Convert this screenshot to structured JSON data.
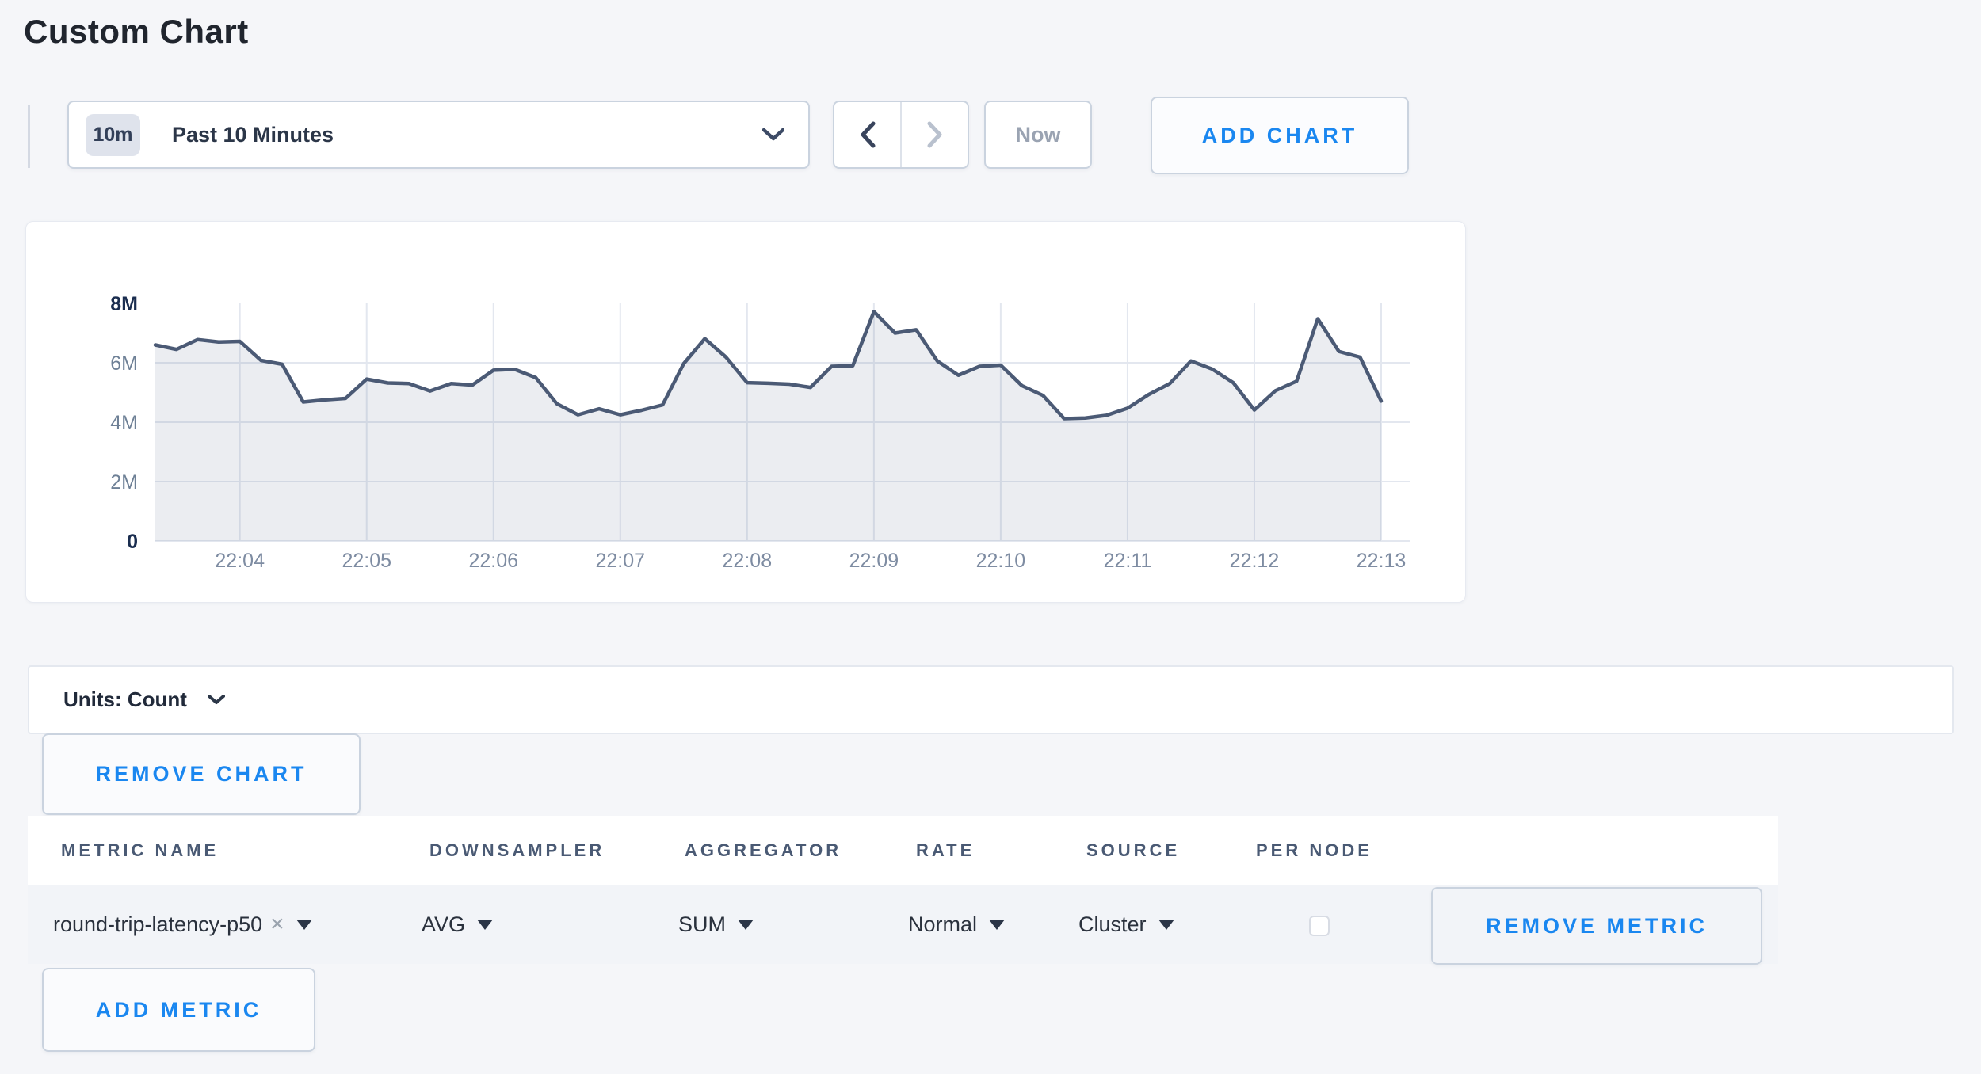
{
  "title": "Custom Chart",
  "colors": {
    "accent_blue": "#1a87f0",
    "line": "#4b5a75",
    "area_fill": "rgba(104,119,148,0.13)",
    "gridline": "#e3e7ef",
    "axis_strong": "#1a2d4f",
    "axis_minor": "#6e8096",
    "x_label": "#7e8ca2"
  },
  "toolbar": {
    "time_badge": "10m",
    "time_label": "Past 10 Minutes",
    "now_label": "Now",
    "add_chart_label": "ADD CHART"
  },
  "chart_controls": {
    "units_label": "Units: Count",
    "remove_chart_label": "REMOVE CHART"
  },
  "table": {
    "headers": [
      "METRIC NAME",
      "DOWNSAMPLER",
      "AGGREGATOR",
      "RATE",
      "SOURCE",
      "PER NODE"
    ],
    "row": {
      "metric": "round-trip-latency-p50",
      "downsampler": "AVG",
      "aggregator": "SUM",
      "rate": "Normal",
      "source": "Cluster",
      "per_node": false
    },
    "remove_metric_label": "REMOVE METRIC",
    "add_metric_label": "ADD METRIC"
  },
  "icons": {
    "close": "×"
  },
  "chart_data": {
    "type": "area",
    "title": "",
    "xlabel": "",
    "ylabel": "Count",
    "ylim": [
      0,
      8000000
    ],
    "grid": true,
    "legend": false,
    "n_points": 59,
    "points_interval_seconds": 10,
    "values": [
      6600000,
      6450000,
      6780000,
      6700000,
      6720000,
      6080000,
      5950000,
      4680000,
      4750000,
      4800000,
      5450000,
      5320000,
      5300000,
      5050000,
      5300000,
      5250000,
      5750000,
      5780000,
      5500000,
      4620000,
      4250000,
      4450000,
      4250000,
      4400000,
      4580000,
      5970000,
      6810000,
      6190000,
      5330000,
      5310000,
      5280000,
      5170000,
      5880000,
      5900000,
      7720000,
      7000000,
      7110000,
      6060000,
      5580000,
      5880000,
      5920000,
      5230000,
      4900000,
      4120000,
      4140000,
      4230000,
      4470000,
      4930000,
      5300000,
      6060000,
      5790000,
      5330000,
      4410000,
      5060000,
      5380000,
      7480000,
      6380000,
      6190000,
      4710000
    ],
    "x_ticks": [
      {
        "i": 4,
        "label": "22:04"
      },
      {
        "i": 10,
        "label": "22:05"
      },
      {
        "i": 16,
        "label": "22:06"
      },
      {
        "i": 22,
        "label": "22:07"
      },
      {
        "i": 28,
        "label": "22:08"
      },
      {
        "i": 34,
        "label": "22:09"
      },
      {
        "i": 40,
        "label": "22:10"
      },
      {
        "i": 46,
        "label": "22:11"
      },
      {
        "i": 52,
        "label": "22:12"
      },
      {
        "i": 58,
        "label": "22:13"
      }
    ],
    "y_ticks": [
      {
        "value": 0,
        "label": "0",
        "strong": true
      },
      {
        "value": 2000000,
        "label": "2M",
        "strong": false
      },
      {
        "value": 4000000,
        "label": "4M",
        "strong": false
      },
      {
        "value": 6000000,
        "label": "6M",
        "strong": false
      },
      {
        "value": 8000000,
        "label": "8M",
        "strong": true
      }
    ]
  }
}
